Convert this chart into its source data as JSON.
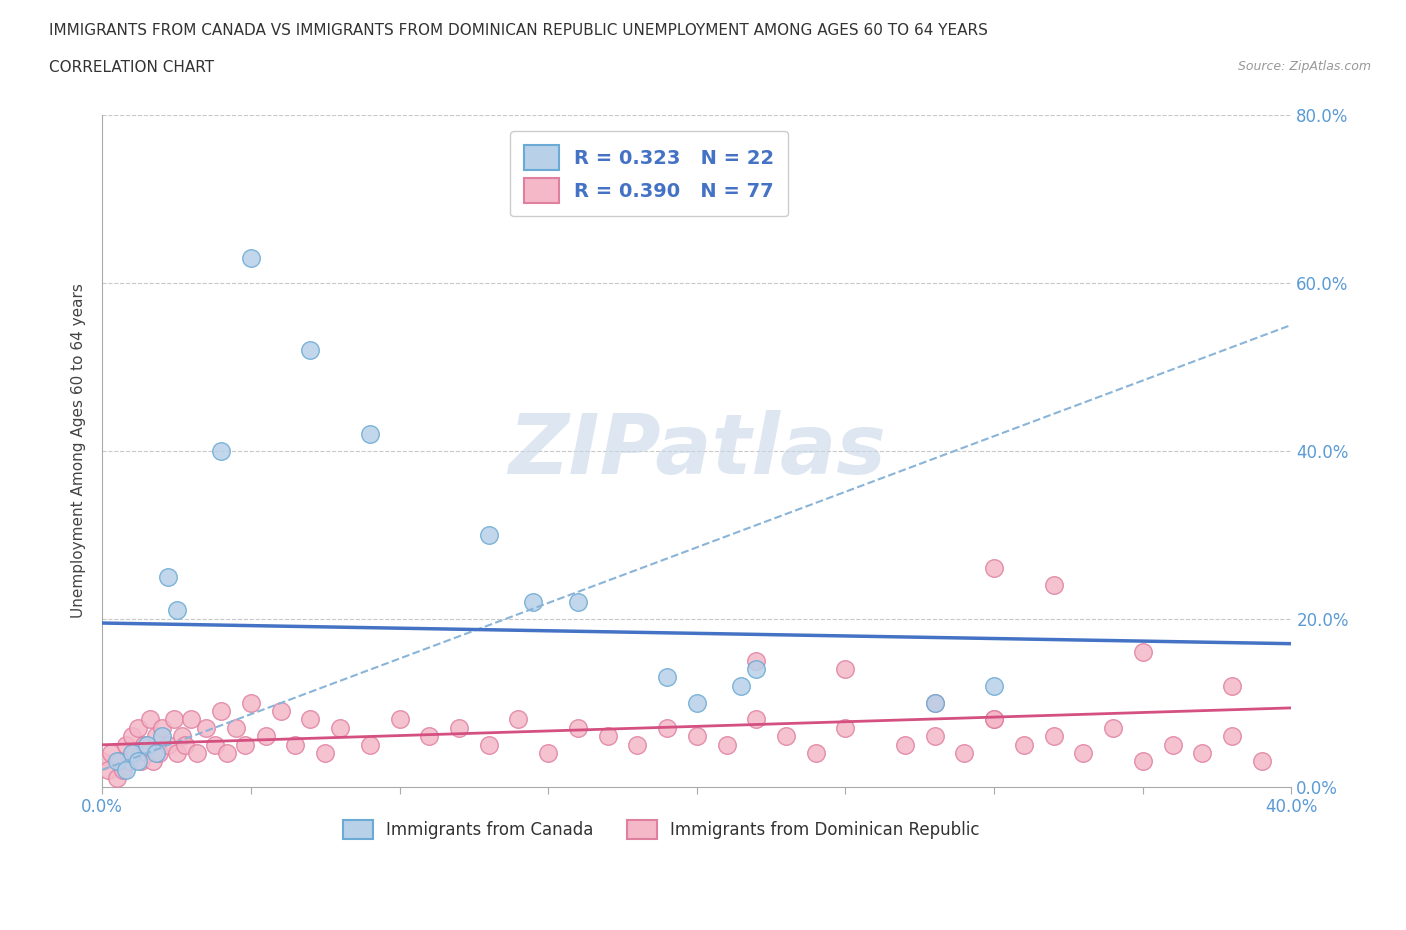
{
  "title_line1": "IMMIGRANTS FROM CANADA VS IMMIGRANTS FROM DOMINICAN REPUBLIC UNEMPLOYMENT AMONG AGES 60 TO 64 YEARS",
  "title_line2": "CORRELATION CHART",
  "source": "Source: ZipAtlas.com",
  "ylabel_label": "Unemployment Among Ages 60 to 64 years",
  "canada_R": 0.323,
  "canada_N": 22,
  "dr_R": 0.39,
  "dr_N": 77,
  "canada_color": "#b8d0e8",
  "canada_edge_color": "#6aaad4",
  "canada_line_color": "#4472c4",
  "dr_color": "#f4b8c8",
  "dr_edge_color": "#e080a0",
  "dr_line_color": "#d45080",
  "dashed_line_color": "#8ab4d8",
  "xmin": 0.0,
  "xmax": 0.4,
  "ymin": 0.0,
  "ymax": 0.8,
  "ytick_vals": [
    0.0,
    0.2,
    0.4,
    0.6,
    0.8
  ],
  "xtick_positions": [
    0.0,
    0.05,
    0.1,
    0.15,
    0.2,
    0.25,
    0.3,
    0.35,
    0.4
  ],
  "canada_x": [
    0.005,
    0.008,
    0.01,
    0.012,
    0.015,
    0.018,
    0.02,
    0.022,
    0.025,
    0.04,
    0.05,
    0.07,
    0.09,
    0.13,
    0.145,
    0.16,
    0.19,
    0.2,
    0.215,
    0.22,
    0.28,
    0.3
  ],
  "canada_y": [
    0.03,
    0.02,
    0.04,
    0.03,
    0.05,
    0.04,
    0.06,
    0.25,
    0.21,
    0.4,
    0.63,
    0.52,
    0.42,
    0.3,
    0.22,
    0.22,
    0.13,
    0.1,
    0.12,
    0.14,
    0.1,
    0.12
  ],
  "dr_x": [
    0.0,
    0.002,
    0.003,
    0.005,
    0.006,
    0.007,
    0.008,
    0.009,
    0.01,
    0.011,
    0.012,
    0.013,
    0.014,
    0.015,
    0.016,
    0.017,
    0.018,
    0.019,
    0.02,
    0.022,
    0.024,
    0.025,
    0.027,
    0.028,
    0.03,
    0.032,
    0.035,
    0.038,
    0.04,
    0.042,
    0.045,
    0.048,
    0.05,
    0.055,
    0.06,
    0.065,
    0.07,
    0.075,
    0.08,
    0.09,
    0.1,
    0.11,
    0.12,
    0.13,
    0.14,
    0.15,
    0.16,
    0.17,
    0.18,
    0.19,
    0.2,
    0.21,
    0.22,
    0.23,
    0.24,
    0.25,
    0.27,
    0.28,
    0.29,
    0.3,
    0.31,
    0.32,
    0.33,
    0.34,
    0.35,
    0.36,
    0.37,
    0.38,
    0.39,
    0.3,
    0.32,
    0.35,
    0.38,
    0.25,
    0.28,
    0.3,
    0.22
  ],
  "dr_y": [
    0.03,
    0.02,
    0.04,
    0.01,
    0.03,
    0.02,
    0.05,
    0.03,
    0.06,
    0.04,
    0.07,
    0.03,
    0.05,
    0.04,
    0.08,
    0.03,
    0.06,
    0.04,
    0.07,
    0.05,
    0.08,
    0.04,
    0.06,
    0.05,
    0.08,
    0.04,
    0.07,
    0.05,
    0.09,
    0.04,
    0.07,
    0.05,
    0.1,
    0.06,
    0.09,
    0.05,
    0.08,
    0.04,
    0.07,
    0.05,
    0.08,
    0.06,
    0.07,
    0.05,
    0.08,
    0.04,
    0.07,
    0.06,
    0.05,
    0.07,
    0.06,
    0.05,
    0.08,
    0.06,
    0.04,
    0.07,
    0.05,
    0.06,
    0.04,
    0.08,
    0.05,
    0.06,
    0.04,
    0.07,
    0.03,
    0.05,
    0.04,
    0.06,
    0.03,
    0.26,
    0.24,
    0.16,
    0.12,
    0.14,
    0.1,
    0.08,
    0.15
  ],
  "watermark_text": "ZIPatlas",
  "legend_label_canada": "Immigrants from Canada",
  "legend_label_dr": "Immigrants from Dominican Republic"
}
